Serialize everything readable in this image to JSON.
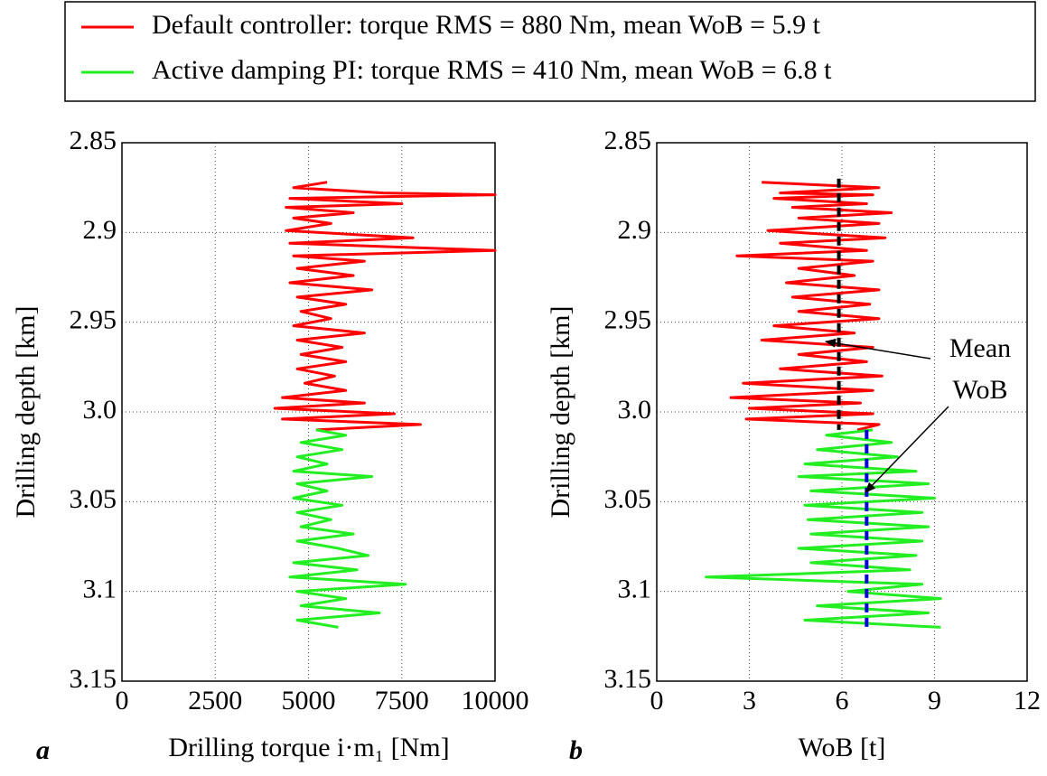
{
  "chart_data": [
    {
      "type": "line",
      "label": "a",
      "xlabel": "Drilling torque i·m₁ [Nm]",
      "ylabel": "Drilling depth [km]",
      "xlim": [
        0,
        10000
      ],
      "xticks": [
        0,
        2500,
        5000,
        7500,
        10000
      ],
      "ylim": [
        2.85,
        3.15
      ],
      "yinvert": true,
      "yticks": [
        2.85,
        2.9,
        2.95,
        {
          "value": 3,
          "label": "3.0"
        },
        3.05,
        3.1,
        3.15
      ],
      "grid": true,
      "series": [
        {
          "name": "Default controller: torque RMS = 880 Nm, mean WoB = 5.9 t",
          "color": "#ff0000",
          "depth": [
            2.872,
            2.875,
            2.878,
            2.879,
            2.881,
            2.884,
            2.886,
            2.889,
            2.892,
            2.895,
            2.899,
            2.903,
            2.906,
            2.91,
            2.913,
            2.916,
            2.92,
            2.924,
            2.928,
            2.932,
            2.936,
            2.94,
            2.944,
            2.948,
            2.952,
            2.956,
            2.96,
            2.964,
            2.968,
            2.972,
            2.976,
            2.98,
            2.984,
            2.988,
            2.992,
            2.995,
            2.998,
            3.001,
            3.004,
            3.007,
            3.01
          ],
          "values": [
            5500,
            4600,
            7000,
            10000,
            4500,
            7500,
            4400,
            6200,
            4600,
            5600,
            4400,
            7800,
            4500,
            10000,
            4600,
            6500,
            4700,
            6200,
            4500,
            6700,
            4700,
            6000,
            4800,
            5600,
            4600,
            6500,
            4700,
            5900,
            4800,
            6000,
            4700,
            5700,
            4900,
            6000,
            4300,
            6500,
            4100,
            7300,
            4300,
            8000,
            5200
          ]
        },
        {
          "name": "Active damping PI: torque RMS = 410 Nm, mean WoB = 6.8 t",
          "color": "#22ee22",
          "depth": [
            3.01,
            3.013,
            3.017,
            3.021,
            3.025,
            3.029,
            3.033,
            3.036,
            3.04,
            3.044,
            3.048,
            3.052,
            3.056,
            3.06,
            3.064,
            3.068,
            3.072,
            3.076,
            3.08,
            3.084,
            3.088,
            3.092,
            3.096,
            3.1,
            3.104,
            3.108,
            3.112,
            3.116,
            3.12
          ],
          "values": [
            5200,
            6000,
            4800,
            5900,
            4700,
            5500,
            4600,
            6700,
            4700,
            5500,
            4600,
            5900,
            4700,
            5600,
            4800,
            6200,
            4700,
            5800,
            6600,
            4600,
            6300,
            4500,
            7600,
            4700,
            6000,
            4800,
            6900,
            4700,
            5800
          ]
        }
      ]
    },
    {
      "type": "line",
      "label": "b",
      "xlabel": "WoB [t]",
      "ylabel": "Drilling depth [km]",
      "xlim": [
        0,
        12
      ],
      "xticks": [
        0,
        3,
        6,
        9,
        12
      ],
      "ylim": [
        2.85,
        3.15
      ],
      "yinvert": true,
      "yticks": [
        2.85,
        2.9,
        2.95,
        {
          "value": 3,
          "label": "3.0"
        },
        3.05,
        3.1,
        3.15
      ],
      "grid": true,
      "series": [
        {
          "color": "#ff0000",
          "depth": [
            2.872,
            2.875,
            2.878,
            2.879,
            2.881,
            2.884,
            2.886,
            2.889,
            2.892,
            2.895,
            2.899,
            2.903,
            2.906,
            2.91,
            2.913,
            2.916,
            2.92,
            2.924,
            2.928,
            2.932,
            2.936,
            2.94,
            2.944,
            2.948,
            2.952,
            2.956,
            2.96,
            2.964,
            2.968,
            2.972,
            2.976,
            2.98,
            2.984,
            2.988,
            2.992,
            2.995,
            2.998,
            3.001,
            3.004,
            3.007,
            3.01
          ],
          "values": [
            3.4,
            7.2,
            4.0,
            7.0,
            3.8,
            6.8,
            4.4,
            7.6,
            4.6,
            7.2,
            3.6,
            7.4,
            4.0,
            6.8,
            2.6,
            7.0,
            4.6,
            6.4,
            4.2,
            7.2,
            4.4,
            6.9,
            4.6,
            7.2,
            3.8,
            6.4,
            3.4,
            7.0,
            4.6,
            6.8,
            4.0,
            7.3,
            2.8,
            7.0,
            2.4,
            6.6,
            3.0,
            7.0,
            2.9,
            7.2,
            6.5
          ]
        },
        {
          "color": "#22ee22",
          "depth": [
            3.01,
            3.013,
            3.017,
            3.021,
            3.025,
            3.029,
            3.033,
            3.036,
            3.04,
            3.044,
            3.048,
            3.052,
            3.056,
            3.06,
            3.064,
            3.068,
            3.072,
            3.076,
            3.08,
            3.084,
            3.088,
            3.092,
            3.096,
            3.1,
            3.104,
            3.108,
            3.112,
            3.116,
            3.12
          ],
          "values": [
            7.0,
            5.5,
            7.6,
            5.2,
            7.8,
            4.8,
            8.4,
            4.6,
            8.8,
            5.0,
            9.0,
            4.8,
            8.6,
            4.9,
            8.8,
            5.0,
            8.6,
            4.6,
            8.4,
            5.0,
            8.2,
            1.6,
            8.6,
            6.2,
            9.2,
            5.2,
            8.8,
            4.8,
            9.2
          ]
        }
      ],
      "reference_lines": [
        {
          "value": 5.9,
          "from": 2.87,
          "to": 3.01,
          "color": "#000000"
        },
        {
          "value": 6.8,
          "from": 3.01,
          "to": 3.12,
          "color": "#0000dd"
        }
      ],
      "annotation": [
        "Mean",
        "WoB"
      ]
    }
  ]
}
